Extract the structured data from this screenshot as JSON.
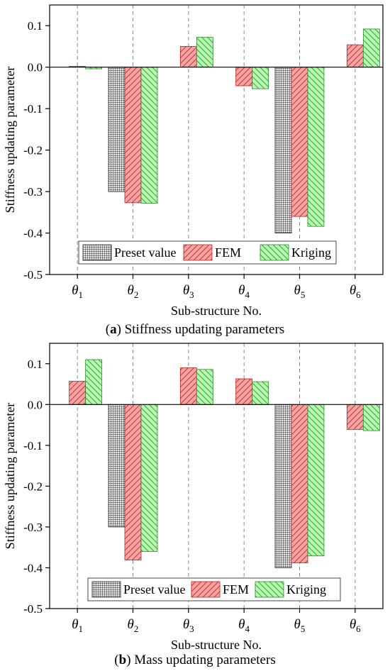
{
  "chart_data": [
    {
      "type": "bar",
      "caption_letter": "a",
      "caption_text": "Stiffness updating parameters",
      "xlabel": "Sub-structure No.",
      "ylabel": "Stiffness updating parameter",
      "ylim": [
        -0.5,
        0.15
      ],
      "yticks": [
        "0.1",
        "0.0",
        "-0.1",
        "-0.2",
        "-0.3",
        "-0.4",
        "-0.5"
      ],
      "ytick_values": [
        0.1,
        0.0,
        -0.1,
        -0.2,
        -0.3,
        -0.4,
        -0.5
      ],
      "category_symbol": "θ",
      "category_subscripts": [
        "1",
        "2",
        "3",
        "4",
        "5",
        "6"
      ],
      "grid": "vertical dashed at categories",
      "legend_position": "bottom-center",
      "series": [
        {
          "name": "Preset value",
          "color": "#555555",
          "pattern": "grid",
          "values": [
            0.0,
            -0.3,
            0.0,
            0.0,
            -0.4,
            0.0
          ]
        },
        {
          "name": "FEM",
          "color": "#f28b8b",
          "pattern": "hatch-up",
          "values": [
            0.002,
            -0.327,
            0.05,
            -0.045,
            -0.36,
            0.054
          ]
        },
        {
          "name": "Kriging",
          "color": "#90ee90",
          "pattern": "hatch-down",
          "values": [
            -0.004,
            -0.328,
            0.072,
            -0.052,
            -0.384,
            0.092
          ]
        }
      ]
    },
    {
      "type": "bar",
      "caption_letter": "b",
      "caption_text": "Mass updating parameters",
      "xlabel": "Sub-structure No.",
      "ylabel": "Stiffness updating parameter",
      "ylim": [
        -0.5,
        0.15
      ],
      "yticks": [
        "0.1",
        "0.0",
        "-0.1",
        "-0.2",
        "-0.3",
        "-0.4",
        "-0.5"
      ],
      "ytick_values": [
        0.1,
        0.0,
        -0.1,
        -0.2,
        -0.3,
        -0.4,
        -0.5
      ],
      "category_symbol": "θ",
      "category_subscripts": [
        "1",
        "2",
        "3",
        "4",
        "5",
        "6"
      ],
      "grid": "vertical dashed at categories",
      "legend_position": "bottom-center",
      "series": [
        {
          "name": "Preset value",
          "color": "#555555",
          "pattern": "grid",
          "values": [
            0.0,
            -0.3,
            0.0,
            0.0,
            -0.4,
            0.0
          ]
        },
        {
          "name": "FEM",
          "color": "#f28b8b",
          "pattern": "hatch-up",
          "values": [
            0.057,
            -0.381,
            0.09,
            0.063,
            -0.388,
            -0.061
          ]
        },
        {
          "name": "Kriging",
          "color": "#90ee90",
          "pattern": "hatch-down",
          "values": [
            0.11,
            -0.36,
            0.086,
            0.056,
            -0.371,
            -0.064
          ]
        }
      ]
    }
  ]
}
